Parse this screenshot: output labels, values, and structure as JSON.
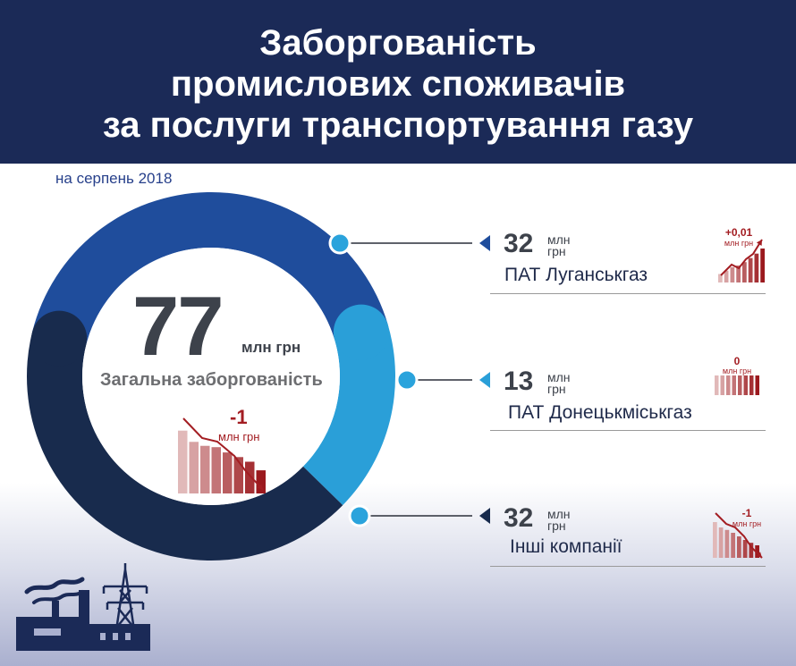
{
  "header": {
    "title_lines": [
      "Заборгованість",
      "промислових споживачів",
      "за послуги транспортування газу"
    ]
  },
  "date_label": "на серпень 2018",
  "colors": {
    "header_bg": "#1b2a57",
    "ring_dark": "#182b4d",
    "ring_blue": "#1f4d9c",
    "ring_light": "#2a9fd8",
    "change_red": "#a31d22"
  },
  "total": {
    "value": "77",
    "unit": "млн грн",
    "label": "Загальна заборгованість",
    "change": "-1",
    "change_unit": "млн грн"
  },
  "items": [
    {
      "value": "32",
      "unit_line1": "млн",
      "unit_line2": "грн",
      "name": "ПАТ Луганськгаз",
      "change": "+0,01",
      "change_unit": "млн грн"
    },
    {
      "value": "13",
      "unit_line1": "млн",
      "unit_line2": "грн",
      "name": "ПАТ Донецькміськгаз",
      "change": "0",
      "change_unit": "млн грн"
    },
    {
      "value": "32",
      "unit_line1": "млн",
      "unit_line2": "грн",
      "name": "Інші компанії",
      "change": "-1",
      "change_unit": "млн грн"
    }
  ],
  "chart_data": {
    "type": "pie",
    "style": "donut",
    "title": "Заборгованість промислових споживачів за послуги транспортування газу",
    "subtitle": "на серпень 2018",
    "unit": "млн грн",
    "total": 77,
    "total_change": -1,
    "categories": [
      "ПАТ Луганськгаз",
      "ПАТ Донецькміськгаз",
      "Інші компанії"
    ],
    "values": [
      32,
      13,
      32
    ],
    "changes": [
      0.01,
      0,
      -1
    ],
    "colors": [
      "#1f4d9c",
      "#2a9fd8",
      "#182b4d"
    ],
    "legend": "right"
  }
}
